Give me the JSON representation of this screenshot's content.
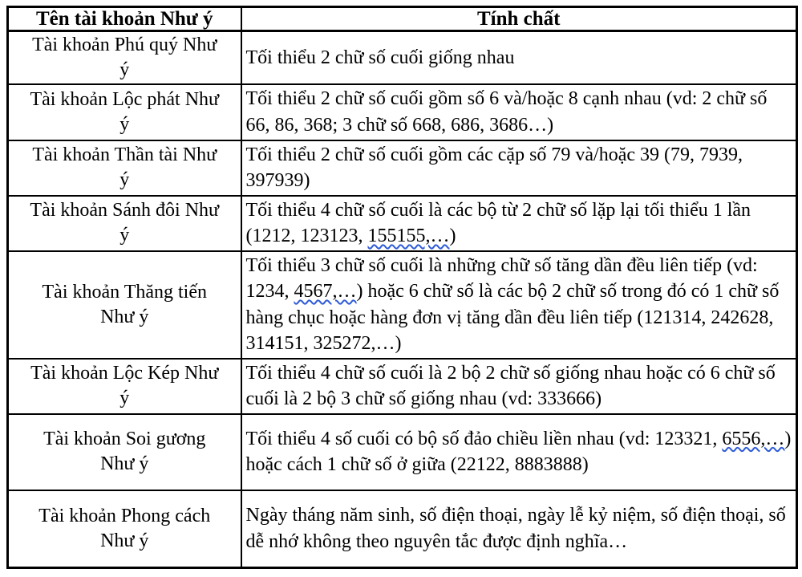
{
  "colors": {
    "border": "#000000",
    "text": "#000000",
    "background": "#ffffff",
    "spellcheck_underline": "#2e5bd7"
  },
  "table": {
    "headers": {
      "account_name": "Tên tài khoản Như ý",
      "property": "Tính chất"
    },
    "rows": [
      {
        "name": "Tài khoản Phú quý Như ý",
        "name_lines": [
          "Tài khoản Phú quý Như",
          "ý"
        ],
        "segments": [
          {
            "text": "Tối thiểu 2 chữ số cuối giống nhau",
            "wavy": false
          }
        ]
      },
      {
        "name": "Tài khoản Lộc phát Như ý",
        "name_lines": [
          "Tài khoản Lộc phát Như",
          "ý"
        ],
        "segments": [
          {
            "text": "Tối thiểu 2 chữ số cuối gồm số 6 và/hoặc 8 cạnh nhau (vd: 2 chữ số 66, 86, 368; 3 chữ số 668, 686, 3686…)",
            "wavy": false
          }
        ]
      },
      {
        "name": "Tài khoản Thần tài Như ý",
        "name_lines": [
          "Tài khoản Thần tài Như",
          "ý"
        ],
        "segments": [
          {
            "text": "Tối thiểu 2 chữ số cuối gồm các cặp số 79 và/hoặc 39 (79, 7939, 397939)",
            "wavy": false
          }
        ]
      },
      {
        "name": "Tài khoản Sánh đôi Như ý",
        "name_lines": [
          "Tài khoản Sánh đôi Như",
          "ý"
        ],
        "segments": [
          {
            "text": "Tối thiểu 4 chữ số cuối là các bộ từ 2 chữ số lặp lại tối thiểu 1 lần (1212, 123123, ",
            "wavy": false
          },
          {
            "text": "155155,…",
            "wavy": true
          },
          {
            "text": ")",
            "wavy": false
          }
        ]
      },
      {
        "name": "Tài khoản Thăng tiến Như ý",
        "name_lines": [
          "Tài khoản Thăng tiến",
          "Như ý"
        ],
        "segments": [
          {
            "text": "Tối thiểu 3 chữ số cuối là những chữ số tăng dần đều liên tiếp (vd: 1234, ",
            "wavy": false
          },
          {
            "text": "4567,…",
            "wavy": true
          },
          {
            "text": ") hoặc 6 chữ số là các bộ 2 chữ số trong đó có 1 chữ số hàng chục hoặc hàng đơn vị tăng dần đều liên tiếp (121314, 242628, 314151, 325272,…)",
            "wavy": false
          }
        ]
      },
      {
        "name": "Tài khoản Lộc Kép Như ý",
        "name_lines": [
          "Tài khoản Lộc Kép Như",
          "ý"
        ],
        "segments": [
          {
            "text": "Tối thiểu 4 chữ số cuối là 2 bộ 2 chữ số giống nhau hoặc có 6 chữ số cuối là 2 bộ 3 chữ số giống nhau (vd: 333666)",
            "wavy": false
          }
        ]
      },
      {
        "name": "Tài khoản Soi gương Như ý",
        "name_lines": [
          "Tài khoản Soi gương",
          "Như ý"
        ],
        "segments": [
          {
            "text": "Tối thiểu 4 số cuối có bộ số đảo chiều liền nhau (vd: 123321, ",
            "wavy": false
          },
          {
            "text": "6556,…",
            "wavy": true
          },
          {
            "text": ") hoặc cách 1 chữ số ở giữa (22122, 8883888)",
            "wavy": false
          }
        ]
      },
      {
        "name": "Tài khoản Phong cách Như ý",
        "name_lines": [
          "Tài khoản Phong cách",
          "Như ý"
        ],
        "segments": [
          {
            "text": "Ngày tháng năm sinh, số điện thoại, ngày lễ kỷ niệm, số điện thoại, số dễ nhớ không theo nguyên tắc được định nghĩa…",
            "wavy": false
          }
        ]
      }
    ]
  }
}
